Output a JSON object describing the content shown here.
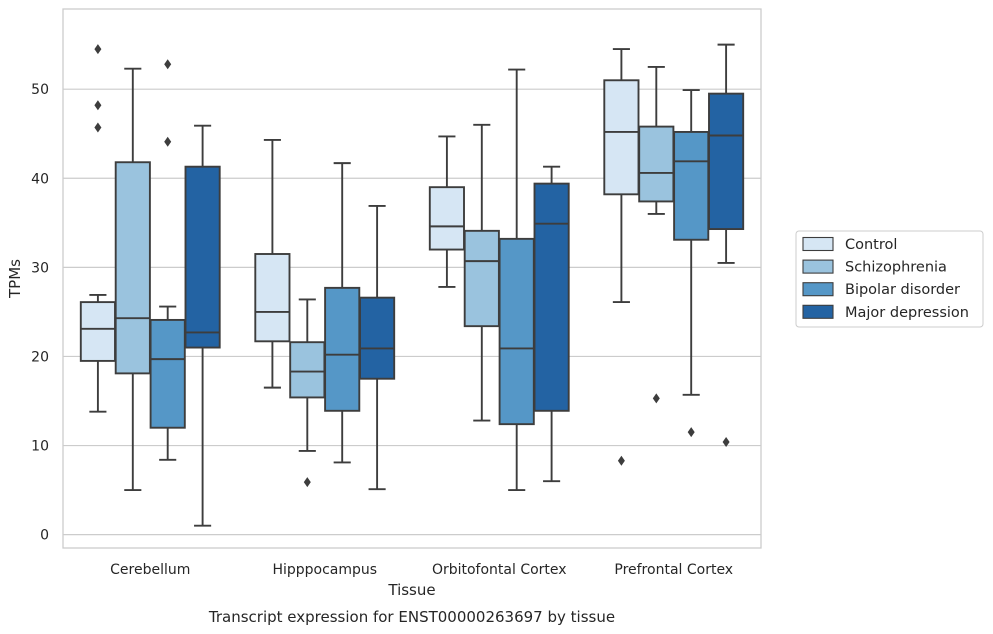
{
  "chart_data": {
    "type": "box",
    "title": "",
    "caption": "Transcript expression for ENST00000263697 by tissue",
    "xlabel": "Tissue",
    "ylabel": "TPMs",
    "ylim": [
      -1.5,
      59
    ],
    "yticks": [
      0,
      10,
      20,
      30,
      40,
      50
    ],
    "grid": "horizontal",
    "legend_position": "right",
    "categories": [
      "Cerebellum",
      "Hipppocampus",
      "Orbitofontal Cortex",
      "Prefrontal Cortex"
    ],
    "series": [
      {
        "name": "Control",
        "color": "#d6e6f4",
        "boxes": [
          {
            "whisker_low": 13.8,
            "q1": 19.5,
            "median": 23.1,
            "q3": 26.1,
            "whisker_high": 26.9,
            "outliers": [
              45.7,
              48.2,
              54.5
            ]
          },
          {
            "whisker_low": 16.5,
            "q1": 21.7,
            "median": 25.0,
            "q3": 31.5,
            "whisker_high": 44.3,
            "outliers": []
          },
          {
            "whisker_low": 27.8,
            "q1": 32.0,
            "median": 34.6,
            "q3": 39.0,
            "whisker_high": 44.7,
            "outliers": []
          },
          {
            "whisker_low": 26.1,
            "q1": 38.2,
            "median": 45.2,
            "q3": 51.0,
            "whisker_high": 54.5,
            "outliers": [
              8.3
            ]
          }
        ]
      },
      {
        "name": "Schizophrenia",
        "color": "#9ac3de",
        "boxes": [
          {
            "whisker_low": 5.0,
            "q1": 18.1,
            "median": 24.3,
            "q3": 41.8,
            "whisker_high": 52.3,
            "outliers": []
          },
          {
            "whisker_low": 9.4,
            "q1": 15.4,
            "median": 18.3,
            "q3": 21.6,
            "whisker_high": 26.4,
            "outliers": [
              5.9
            ]
          },
          {
            "whisker_low": 12.8,
            "q1": 23.4,
            "median": 30.7,
            "q3": 34.1,
            "whisker_high": 46.0,
            "outliers": []
          },
          {
            "whisker_low": 36.0,
            "q1": 37.4,
            "median": 40.6,
            "q3": 45.8,
            "whisker_high": 52.5,
            "outliers": [
              15.3
            ]
          }
        ]
      },
      {
        "name": "Bipolar disorder",
        "color": "#5597c7",
        "boxes": [
          {
            "whisker_low": 8.4,
            "q1": 12.0,
            "median": 19.7,
            "q3": 24.1,
            "whisker_high": 25.6,
            "outliers": [
              44.1,
              52.8
            ]
          },
          {
            "whisker_low": 8.1,
            "q1": 13.9,
            "median": 20.2,
            "q3": 27.7,
            "whisker_high": 41.7,
            "outliers": []
          },
          {
            "whisker_low": 5.0,
            "q1": 12.4,
            "median": 20.9,
            "q3": 33.2,
            "whisker_high": 52.2,
            "outliers": []
          },
          {
            "whisker_low": 15.7,
            "q1": 33.1,
            "median": 41.9,
            "q3": 45.2,
            "whisker_high": 49.9,
            "outliers": [
              11.5
            ]
          }
        ]
      },
      {
        "name": "Major depression",
        "color": "#2363a3",
        "boxes": [
          {
            "whisker_low": 1.0,
            "q1": 21.0,
            "median": 22.7,
            "q3": 41.3,
            "whisker_high": 45.9,
            "outliers": []
          },
          {
            "whisker_low": 5.1,
            "q1": 17.5,
            "median": 20.9,
            "q3": 26.6,
            "whisker_high": 36.9,
            "outliers": []
          },
          {
            "whisker_low": 6.0,
            "q1": 13.9,
            "median": 34.9,
            "q3": 39.4,
            "whisker_high": 41.3,
            "outliers": []
          },
          {
            "whisker_low": 30.5,
            "q1": 34.3,
            "median": 44.8,
            "q3": 49.5,
            "whisker_high": 55.0,
            "outliers": [
              10.4
            ]
          }
        ]
      }
    ]
  }
}
